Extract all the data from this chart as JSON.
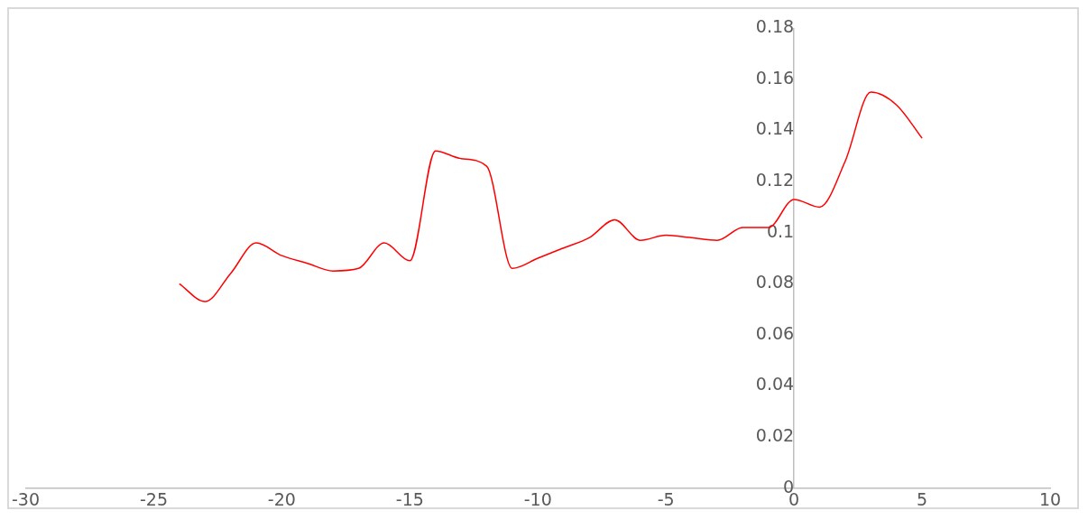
{
  "chart_data": {
    "type": "line",
    "x": [
      -24,
      -23,
      -22,
      -21,
      -20,
      -19,
      -18,
      -17,
      -16,
      -15,
      -14,
      -13,
      -12,
      -11,
      -10,
      -9,
      -8,
      -7,
      -6,
      -5,
      -4,
      -3,
      -2,
      -1,
      0,
      1,
      2,
      3,
      4,
      5
    ],
    "series": [
      {
        "color": "#ff0000",
        "values": [
          0.08,
          0.073,
          0.084,
          0.096,
          0.091,
          0.088,
          0.085,
          0.086,
          0.096,
          0.089,
          0.132,
          0.129,
          0.126,
          0.086,
          0.09,
          0.094,
          0.098,
          0.105,
          0.097,
          0.099,
          0.098,
          0.097,
          0.102,
          0.102,
          0.113,
          0.11,
          0.128,
          0.155,
          0.15,
          0.137
        ]
      }
    ],
    "xlim": [
      -30,
      10
    ],
    "xticks": [
      -30,
      -25,
      -20,
      -15,
      -10,
      -5,
      0,
      5,
      10
    ],
    "ylim": [
      0,
      0.18
    ],
    "yticks": [
      0,
      0.02,
      0.04,
      0.06,
      0.08,
      0.1,
      0.12,
      0.14,
      0.16,
      0.18
    ],
    "grid": false,
    "legend": false,
    "marker": "none",
    "line_style": "solid"
  }
}
